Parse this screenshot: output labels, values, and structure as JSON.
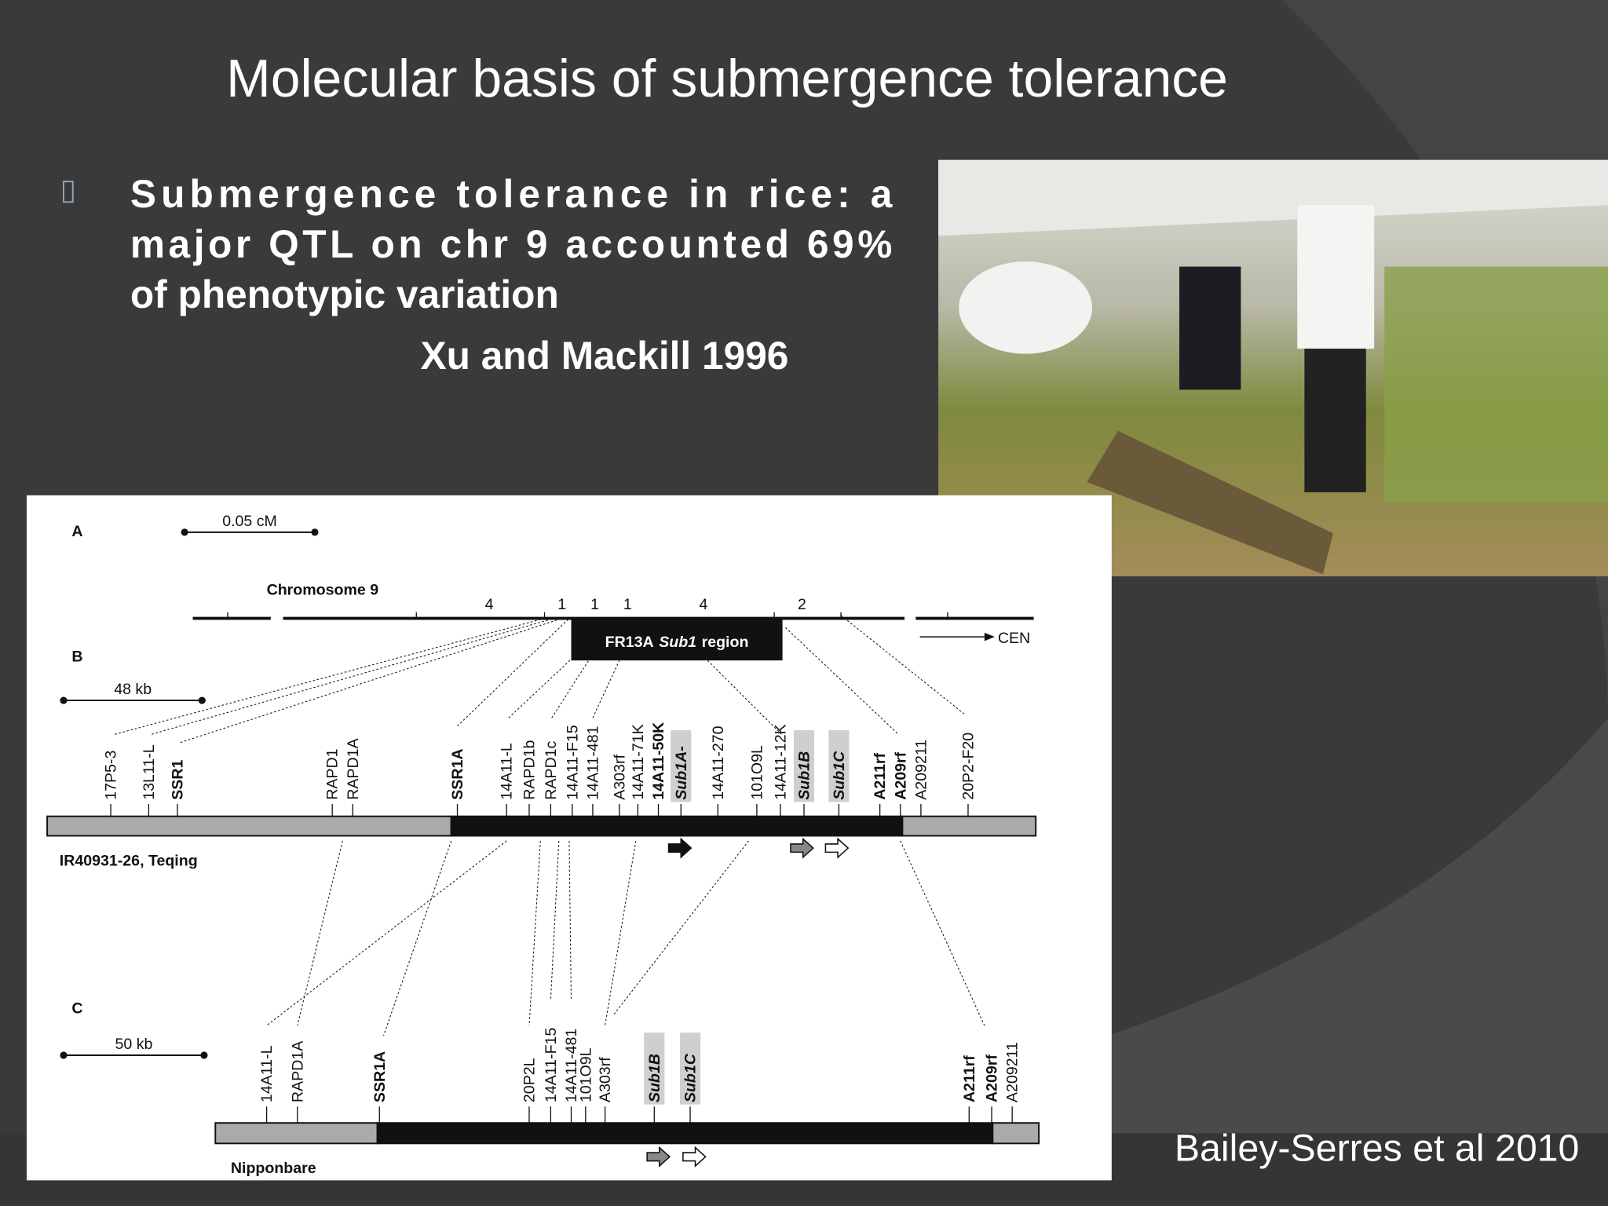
{
  "title": "Molecular basis of submergence tolerance",
  "bullet": {
    "lines": [
      "Submergence tolerance in rice: a",
      "major QTL on chr 9 accounted 69%",
      "of phenotypic variation"
    ],
    "citation": "Xu and Mackill 1996"
  },
  "figure": {
    "panel_a": {
      "label": "A",
      "scale": "0.05 cM",
      "chromosome": "Chromosome 9",
      "counts": [
        4,
        1,
        1,
        1,
        4,
        2
      ],
      "region": {
        "name": "FR13A",
        "italic": "Sub1",
        "suffix": "region"
      },
      "cen": "CEN"
    },
    "panel_b": {
      "label": "B",
      "scale": "48 kb",
      "markers": [
        "17P5-3",
        "13L11-L",
        "SSR1",
        "RAPD1",
        "RAPD1A",
        "SSR1A",
        "14A11-L",
        "RAPD1b",
        "RAPD1c",
        "14A11-F15",
        "14A11-481",
        "A303rf",
        "14A11-71K",
        "14A11-50K",
        "Sub1A-",
        "14A11-270",
        "101O9L",
        "14A11-12K",
        "Sub1B",
        "Sub1C",
        "A211rf",
        "A209rf",
        "A209211",
        "20P2-F20"
      ],
      "line": "IR40931-26, Teqing"
    },
    "panel_c": {
      "label": "C",
      "scale": "50 kb",
      "markers": [
        "14A11-L",
        "RAPD1A",
        "SSR1A",
        "20P2L",
        "14A11-F15",
        "14A11-481",
        "101O9L",
        "A303rf",
        "Sub1B",
        "Sub1C",
        "A211rf",
        "A209rf",
        "A209211"
      ],
      "line": "Nipponbare"
    }
  },
  "source": "Bailey-Serres et al 2010"
}
